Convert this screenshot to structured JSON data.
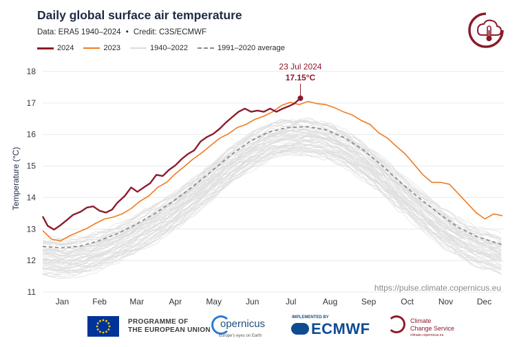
{
  "header": {
    "title": "Daily global surface air temperature",
    "subtitle_data": "Data: ERA5 1940–2024",
    "subtitle_dot": "•",
    "subtitle_credit": "Credit: C3S/ECMWF"
  },
  "legend": [
    {
      "label": "2024",
      "color": "#8b1a2b",
      "style": "solid"
    },
    {
      "label": "2023",
      "color": "#f07a1f",
      "style": "solid"
    },
    {
      "label": "1940–2022",
      "color": "#dcdcdc",
      "style": "solid"
    },
    {
      "label": "1991–2020 average",
      "color": "#8a8a8a",
      "style": "dashed"
    }
  ],
  "colors": {
    "y2024": "#8b1a2b",
    "y2023": "#f07a1f",
    "historical": "#dcdcdc",
    "average": "#8a8a8a",
    "grid": "#e9e9e9",
    "axis_text": "#333333"
  },
  "chart_data": {
    "type": "line",
    "title": "Daily global surface air temperature",
    "ylabel": "Temperature (°C)",
    "xlabel": "",
    "ylim": [
      11,
      18
    ],
    "y_ticks": [
      11,
      12,
      13,
      14,
      15,
      16,
      17,
      18
    ],
    "grid": true,
    "legend_position": "top-left",
    "months": [
      "Jan",
      "Feb",
      "Mar",
      "Apr",
      "May",
      "Jun",
      "Jul",
      "Aug",
      "Sep",
      "Oct",
      "Nov",
      "Dec"
    ],
    "x_unit": "day of year",
    "series": [
      {
        "name": "2024",
        "x": [
          1,
          5,
          10,
          15,
          20,
          25,
          31,
          36,
          41,
          46,
          51,
          56,
          60,
          66,
          71,
          76,
          81,
          86,
          91,
          96,
          101,
          106,
          111,
          116,
          121,
          126,
          131,
          136,
          141,
          146,
          151,
          156,
          161,
          166,
          171,
          176,
          181,
          186,
          191,
          196,
          200,
          205
        ],
        "y": [
          13.4,
          13.1,
          12.98,
          13.12,
          13.28,
          13.45,
          13.55,
          13.68,
          13.72,
          13.58,
          13.52,
          13.62,
          13.83,
          14.05,
          14.32,
          14.18,
          14.32,
          14.45,
          14.72,
          14.68,
          14.88,
          15.02,
          15.22,
          15.38,
          15.5,
          15.78,
          15.92,
          16.02,
          16.18,
          16.38,
          16.55,
          16.72,
          16.82,
          16.72,
          16.76,
          16.72,
          16.82,
          16.72,
          16.82,
          16.9,
          16.98,
          17.15
        ]
      },
      {
        "name": "2023",
        "x": [
          1,
          8,
          15,
          22,
          29,
          36,
          43,
          50,
          57,
          64,
          71,
          78,
          85,
          92,
          99,
          106,
          113,
          120,
          127,
          134,
          141,
          148,
          155,
          162,
          169,
          176,
          183,
          190,
          197,
          204,
          211,
          218,
          225,
          232,
          239,
          246,
          253,
          260,
          267,
          274,
          281,
          288,
          295,
          302,
          309,
          316,
          323,
          330,
          337,
          344,
          351,
          358,
          365
        ],
        "y": [
          12.95,
          12.68,
          12.62,
          12.78,
          12.9,
          13.02,
          13.18,
          13.32,
          13.38,
          13.48,
          13.65,
          13.88,
          14.05,
          14.32,
          14.48,
          14.75,
          14.98,
          15.22,
          15.42,
          15.65,
          15.88,
          16.02,
          16.22,
          16.32,
          16.48,
          16.58,
          16.72,
          16.92,
          17.02,
          16.95,
          17.05,
          16.98,
          16.95,
          16.85,
          16.72,
          16.62,
          16.45,
          16.32,
          16.05,
          15.88,
          15.62,
          15.38,
          15.05,
          14.72,
          14.48,
          14.48,
          14.42,
          14.12,
          13.82,
          13.52,
          13.32,
          13.48,
          13.42
        ]
      },
      {
        "name": "1991–2020 average",
        "x": [
          1,
          15,
          30,
          45,
          60,
          75,
          90,
          105,
          120,
          135,
          150,
          165,
          180,
          195,
          210,
          225,
          240,
          255,
          270,
          285,
          300,
          315,
          330,
          345,
          365
        ],
        "y": [
          12.45,
          12.4,
          12.45,
          12.62,
          12.85,
          13.15,
          13.5,
          13.9,
          14.35,
          14.85,
          15.35,
          15.78,
          16.08,
          16.22,
          16.25,
          16.15,
          15.9,
          15.5,
          15.0,
          14.45,
          13.95,
          13.48,
          13.05,
          12.75,
          12.5
        ]
      }
    ],
    "annotation": {
      "date": "23 Jul 2024",
      "value": "17.15°C",
      "x": 205,
      "y": 17.15
    },
    "source_url": "https://pulse.climate.copernicus.eu"
  },
  "footer": {
    "eu_line1": "PROGRAMME OF",
    "eu_line2": "THE EUROPEAN UNION",
    "copernicus_name": "opernicus",
    "copernicus_tagline": "Europe's eyes on Earth",
    "ecmwf_implemented": "IMPLEMENTED BY",
    "ecmwf_name": "ECMWF",
    "c3s_line1": "Climate",
    "c3s_line2": "Change Service",
    "c3s_url": "climate.copernicus.eu"
  }
}
